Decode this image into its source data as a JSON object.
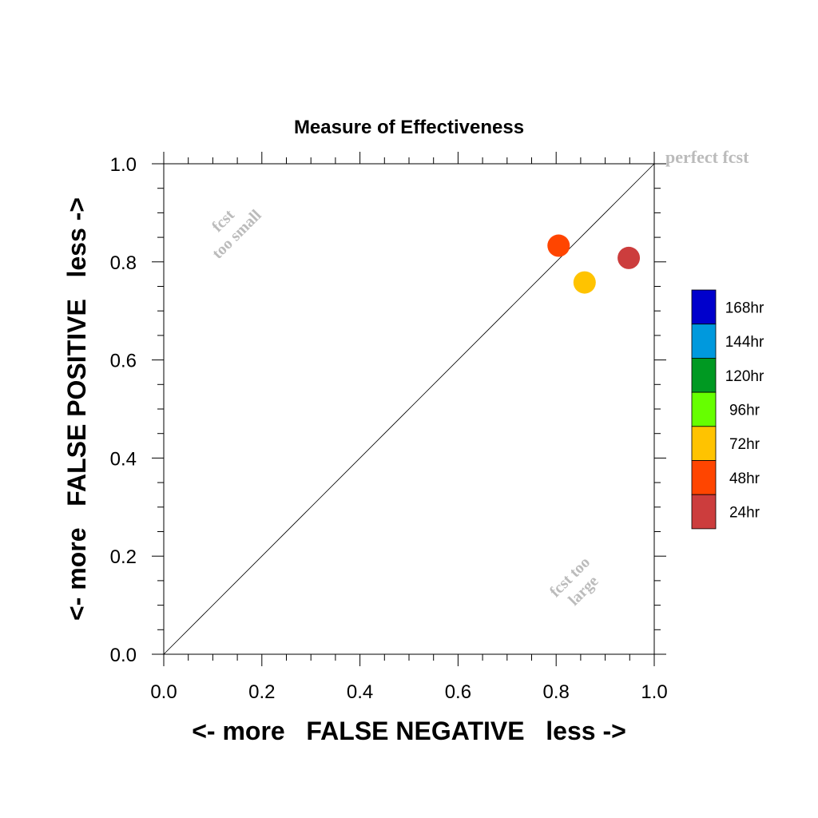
{
  "chart_data": {
    "type": "scatter",
    "title": "Measure of Effectiveness",
    "xlabel": "<- more   FALSE NEGATIVE   less ->",
    "ylabel": "<- more   FALSE POSITIVE   less ->",
    "xlim": [
      0.0,
      1.0
    ],
    "ylim": [
      0.0,
      1.0
    ],
    "x_ticks": [
      "0.0",
      "0.2",
      "0.4",
      "0.6",
      "0.8",
      "1.0"
    ],
    "y_ticks": [
      "0.0",
      "0.2",
      "0.4",
      "0.6",
      "0.8",
      "1.0"
    ],
    "grid": false,
    "reference_line": "diagonal y = x",
    "annotations": {
      "perfect": "perfect fcst",
      "too_small": [
        "fcst",
        "too small"
      ],
      "too_large": [
        "fcst too",
        "large"
      ]
    },
    "points": [
      {
        "x": 0.805,
        "y": 0.833,
        "color": "#ff4500"
      },
      {
        "x": 0.858,
        "y": 0.758,
        "color": "#ffc300"
      },
      {
        "x": 0.948,
        "y": 0.808,
        "color": "#cc3d3d"
      }
    ],
    "legend": {
      "placement": "right",
      "items": [
        {
          "label": "168hr",
          "color": "#0000cc"
        },
        {
          "label": "144hr",
          "color": "#0099dd"
        },
        {
          "label": "120hr",
          "color": "#009922"
        },
        {
          "label": "96hr",
          "color": "#66ff00"
        },
        {
          "label": "72hr",
          "color": "#ffc300"
        },
        {
          "label": "48hr",
          "color": "#ff4500"
        },
        {
          "label": "24hr",
          "color": "#cc3d3d"
        }
      ]
    }
  }
}
